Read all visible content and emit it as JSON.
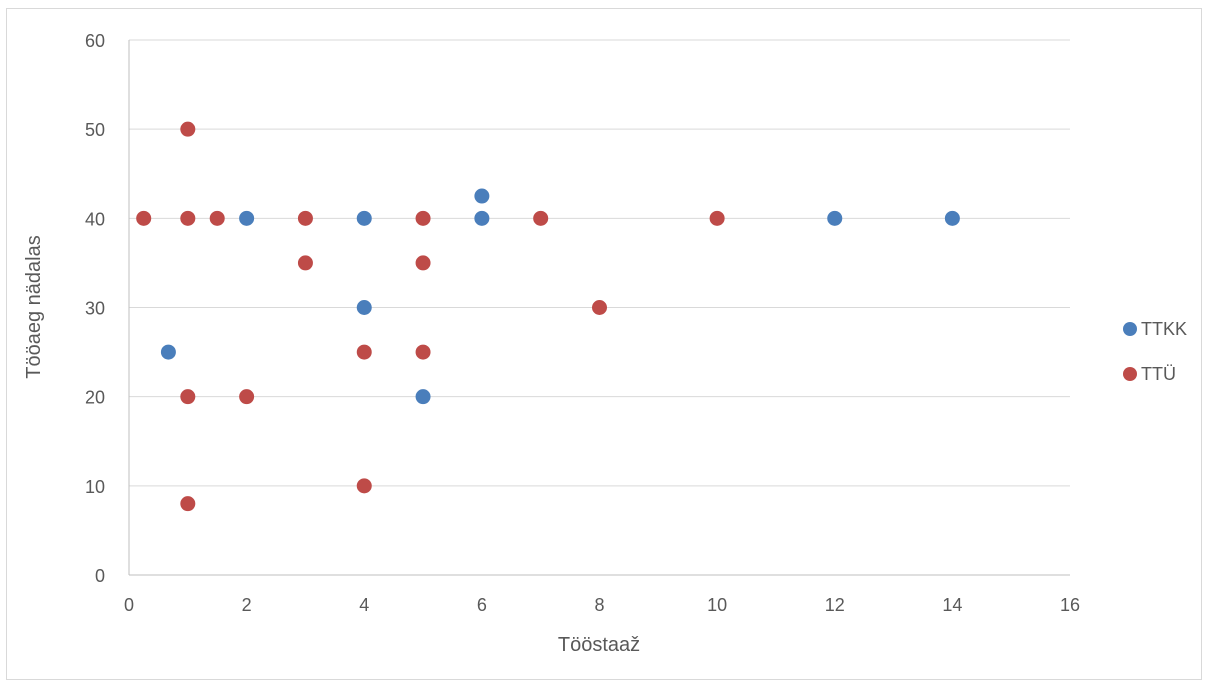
{
  "chart_data": {
    "type": "scatter",
    "title": "",
    "xlabel": "Tööstaaž",
    "ylabel": "Tööaeg nädalas",
    "xlim": [
      0,
      16
    ],
    "ylim": [
      0,
      60
    ],
    "x_ticks": [
      0,
      2,
      4,
      6,
      8,
      10,
      12,
      14,
      16
    ],
    "y_ticks": [
      0,
      10,
      20,
      30,
      40,
      50,
      60
    ],
    "grid": "horizontal",
    "legend_position": "right",
    "series": [
      {
        "name": "TTKK",
        "color": "#4a7ebb",
        "points": [
          {
            "x": 0.67,
            "y": 25
          },
          {
            "x": 2,
            "y": 40
          },
          {
            "x": 4,
            "y": 40
          },
          {
            "x": 4,
            "y": 30
          },
          {
            "x": 5,
            "y": 20
          },
          {
            "x": 6,
            "y": 42.5
          },
          {
            "x": 6,
            "y": 40
          },
          {
            "x": 12,
            "y": 40
          },
          {
            "x": 14,
            "y": 40
          }
        ]
      },
      {
        "name": "TTÜ",
        "color": "#be4b48",
        "points": [
          {
            "x": 0.25,
            "y": 40
          },
          {
            "x": 1,
            "y": 50
          },
          {
            "x": 1,
            "y": 40
          },
          {
            "x": 1,
            "y": 20
          },
          {
            "x": 1,
            "y": 8
          },
          {
            "x": 1.5,
            "y": 40
          },
          {
            "x": 2,
            "y": 20
          },
          {
            "x": 3,
            "y": 40
          },
          {
            "x": 3,
            "y": 35
          },
          {
            "x": 4,
            "y": 25
          },
          {
            "x": 4,
            "y": 10
          },
          {
            "x": 5,
            "y": 40
          },
          {
            "x": 5,
            "y": 35
          },
          {
            "x": 5,
            "y": 25
          },
          {
            "x": 7,
            "y": 40
          },
          {
            "x": 8,
            "y": 30
          },
          {
            "x": 10,
            "y": 40
          }
        ]
      }
    ]
  }
}
